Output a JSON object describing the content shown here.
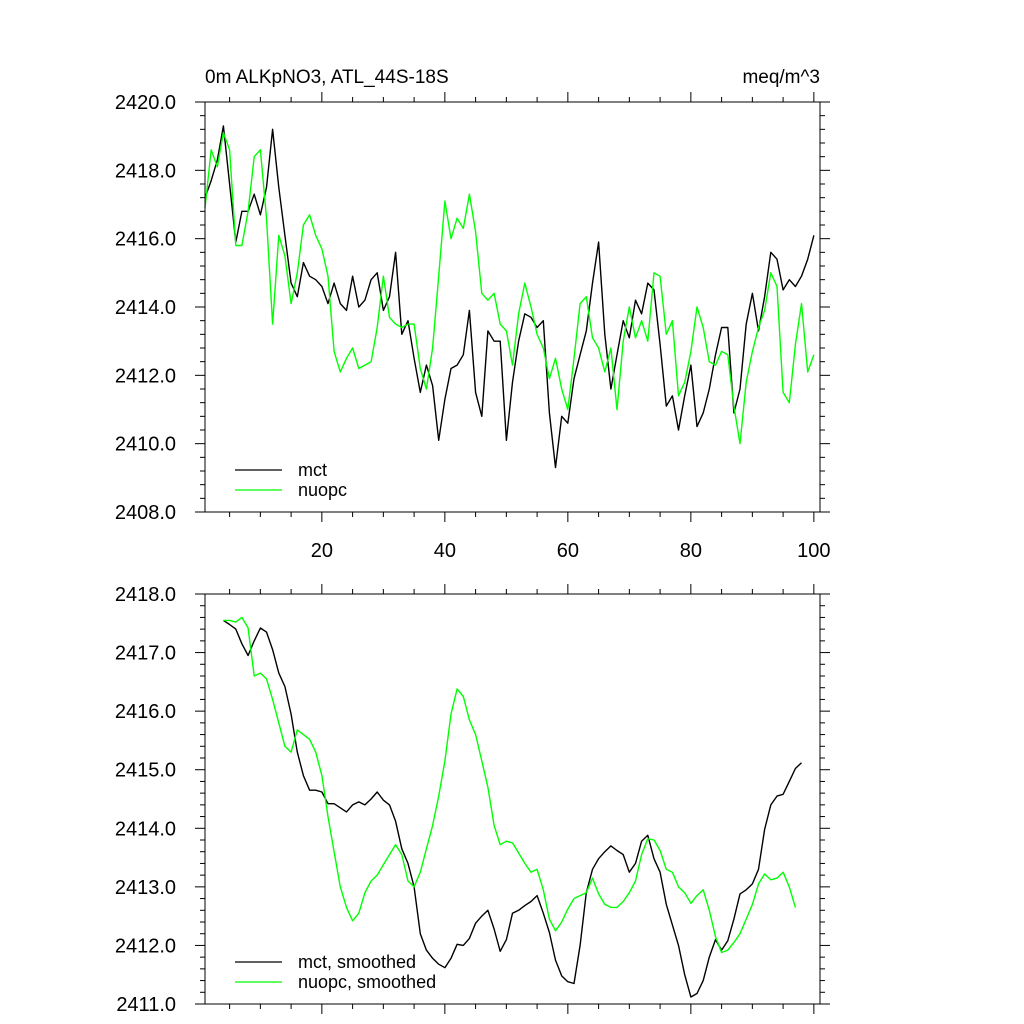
{
  "chart_data": [
    {
      "type": "line",
      "title": "0m ALKpNO3, ATL_44S-18S",
      "units": "meq/m^3",
      "xlim": [
        1,
        101
      ],
      "ylim": [
        2408.0,
        2420.0
      ],
      "xticks": [
        20,
        40,
        60,
        80,
        100
      ],
      "yticks": [
        2408.0,
        2410.0,
        2412.0,
        2414.0,
        2416.0,
        2418.0,
        2420.0
      ],
      "ytick_labels": [
        "2408.0",
        "2410.0",
        "2412.0",
        "2414.0",
        "2416.0",
        "2418.0",
        "2420.0"
      ],
      "legend_position": "bottom-left",
      "series": [
        {
          "name": "mct",
          "color": "#000000",
          "x_start": 1,
          "values": [
            2417.2,
            2417.7,
            2418.3,
            2419.3,
            2417.6,
            2415.9,
            2416.8,
            2416.8,
            2417.3,
            2416.7,
            2417.5,
            2419.2,
            2417.5,
            2416.1,
            2414.7,
            2414.3,
            2415.3,
            2414.9,
            2414.8,
            2414.6,
            2414.1,
            2414.7,
            2414.1,
            2413.9,
            2414.9,
            2414.0,
            2414.2,
            2414.8,
            2415.0,
            2413.9,
            2414.3,
            2415.6,
            2413.2,
            2413.6,
            2412.5,
            2411.5,
            2412.3,
            2411.7,
            2410.1,
            2411.3,
            2412.2,
            2412.3,
            2412.6,
            2413.9,
            2411.5,
            2410.8,
            2413.3,
            2413.0,
            2413.0,
            2410.1,
            2411.8,
            2413.0,
            2413.8,
            2413.7,
            2413.4,
            2413.6,
            2410.9,
            2409.3,
            2410.8,
            2410.6,
            2411.9,
            2412.6,
            2413.3,
            2414.7,
            2415.9,
            2413.2,
            2411.6,
            2412.6,
            2413.6,
            2413.1,
            2414.2,
            2413.8,
            2414.7,
            2414.5,
            2412.9,
            2411.1,
            2411.4,
            2410.4,
            2411.4,
            2412.3,
            2410.5,
            2410.9,
            2411.6,
            2412.6,
            2413.4,
            2413.4,
            2410.9,
            2411.6,
            2413.5,
            2414.4,
            2413.3,
            2414.3,
            2415.6,
            2415.4,
            2414.5,
            2414.8,
            2414.6,
            2414.9,
            2415.4,
            2416.1
          ]
        },
        {
          "name": "nuopc",
          "color": "#00ff00",
          "x_start": 1,
          "values": [
            2416.9,
            2418.6,
            2418.1,
            2419.1,
            2418.6,
            2415.8,
            2415.8,
            2416.8,
            2418.4,
            2418.6,
            2416.6,
            2413.5,
            2416.1,
            2415.5,
            2414.1,
            2415.0,
            2416.4,
            2416.7,
            2416.1,
            2415.7,
            2414.9,
            2412.7,
            2412.1,
            2412.5,
            2412.8,
            2412.2,
            2412.3,
            2412.4,
            2413.4,
            2414.9,
            2413.7,
            2413.5,
            2413.4,
            2413.5,
            2413.5,
            2412.2,
            2411.6,
            2412.8,
            2414.9,
            2417.1,
            2416.0,
            2416.6,
            2416.3,
            2417.3,
            2416.2,
            2414.4,
            2414.2,
            2414.4,
            2413.5,
            2413.3,
            2412.3,
            2413.8,
            2414.7,
            2414.0,
            2413.2,
            2412.8,
            2411.9,
            2412.5,
            2411.6,
            2411.0,
            2412.5,
            2414.1,
            2414.3,
            2413.1,
            2412.8,
            2412.1,
            2412.8,
            2411.0,
            2413.0,
            2414.0,
            2413.1,
            2413.6,
            2413.0,
            2415.0,
            2414.9,
            2413.2,
            2413.6,
            2411.4,
            2411.8,
            2412.7,
            2414.0,
            2413.4,
            2412.4,
            2412.3,
            2412.7,
            2412.6,
            2411.1,
            2410.0,
            2411.8,
            2412.7,
            2413.4,
            2413.9,
            2415.0,
            2414.6,
            2411.5,
            2411.2,
            2412.9,
            2414.1,
            2412.1,
            2412.6
          ]
        }
      ]
    },
    {
      "type": "line",
      "title": "",
      "xlim": [
        1,
        101
      ],
      "ylim": [
        2411.0,
        2418.0
      ],
      "xticks": [
        20,
        40,
        60,
        80,
        100
      ],
      "yticks": [
        2411.0,
        2412.0,
        2413.0,
        2414.0,
        2415.0,
        2416.0,
        2417.0,
        2418.0
      ],
      "ytick_labels": [
        "2411.0",
        "2412.0",
        "2413.0",
        "2414.0",
        "2415.0",
        "2416.0",
        "2417.0",
        "2418.0"
      ],
      "legend_position": "bottom-left",
      "series": [
        {
          "name": "mct, smoothed",
          "color": "#000000",
          "x_start": 4,
          "values": [
            2417.55,
            2417.48,
            2417.4,
            2417.15,
            2416.95,
            2417.2,
            2417.42,
            2417.35,
            2417.05,
            2416.65,
            2416.42,
            2415.95,
            2415.3,
            2414.9,
            2414.65,
            2414.65,
            2414.62,
            2414.42,
            2414.42,
            2414.35,
            2414.28,
            2414.4,
            2414.45,
            2414.4,
            2414.5,
            2414.62,
            2414.48,
            2414.4,
            2414.12,
            2413.65,
            2413.4,
            2413.0,
            2412.2,
            2411.92,
            2411.78,
            2411.68,
            2411.62,
            2411.78,
            2412.02,
            2412.0,
            2412.12,
            2412.38,
            2412.5,
            2412.6,
            2412.28,
            2411.9,
            2412.1,
            2412.55,
            2412.6,
            2412.68,
            2412.75,
            2412.85,
            2412.55,
            2412.22,
            2411.75,
            2411.48,
            2411.38,
            2411.35,
            2412.0,
            2412.9,
            2413.3,
            2413.48,
            2413.6,
            2413.7,
            2413.62,
            2413.55,
            2413.25,
            2413.4,
            2413.78,
            2413.88,
            2413.48,
            2413.25,
            2412.7,
            2412.35,
            2412.0,
            2411.5,
            2411.12,
            2411.18,
            2411.4,
            2411.8,
            2412.1,
            2411.92,
            2412.08,
            2412.45,
            2412.88,
            2412.95,
            2413.05,
            2413.3,
            2413.98,
            2414.4,
            2414.55,
            2414.58,
            2414.8,
            2415.02,
            2415.12
          ]
        },
        {
          "name": "nuopc, smoothed",
          "color": "#00ff00",
          "x_start": 4,
          "values": [
            2417.55,
            2417.55,
            2417.52,
            2417.6,
            2417.42,
            2416.6,
            2416.65,
            2416.55,
            2416.2,
            2415.8,
            2415.4,
            2415.3,
            2415.68,
            2415.6,
            2415.52,
            2415.3,
            2414.9,
            2414.2,
            2413.6,
            2413.0,
            2412.65,
            2412.42,
            2412.55,
            2412.9,
            2413.1,
            2413.2,
            2413.38,
            2413.55,
            2413.72,
            2413.55,
            2413.1,
            2413.0,
            2413.25,
            2413.65,
            2414.05,
            2414.55,
            2415.15,
            2415.95,
            2416.38,
            2416.25,
            2415.85,
            2415.6,
            2415.15,
            2414.7,
            2414.05,
            2413.72,
            2413.78,
            2413.75,
            2413.58,
            2413.4,
            2413.25,
            2413.3,
            2412.95,
            2412.45,
            2412.25,
            2412.4,
            2412.62,
            2412.8,
            2412.85,
            2412.9,
            2413.15,
            2412.88,
            2412.7,
            2412.65,
            2412.65,
            2412.75,
            2412.9,
            2413.1,
            2413.55,
            2413.82,
            2413.8,
            2413.62,
            2413.3,
            2413.25,
            2413.0,
            2412.9,
            2412.72,
            2412.85,
            2412.95,
            2412.6,
            2412.15,
            2411.88,
            2411.92,
            2412.05,
            2412.2,
            2412.45,
            2412.7,
            2413.05,
            2413.22,
            2413.12,
            2413.15,
            2413.25,
            2413.0,
            2412.65
          ]
        }
      ]
    }
  ]
}
